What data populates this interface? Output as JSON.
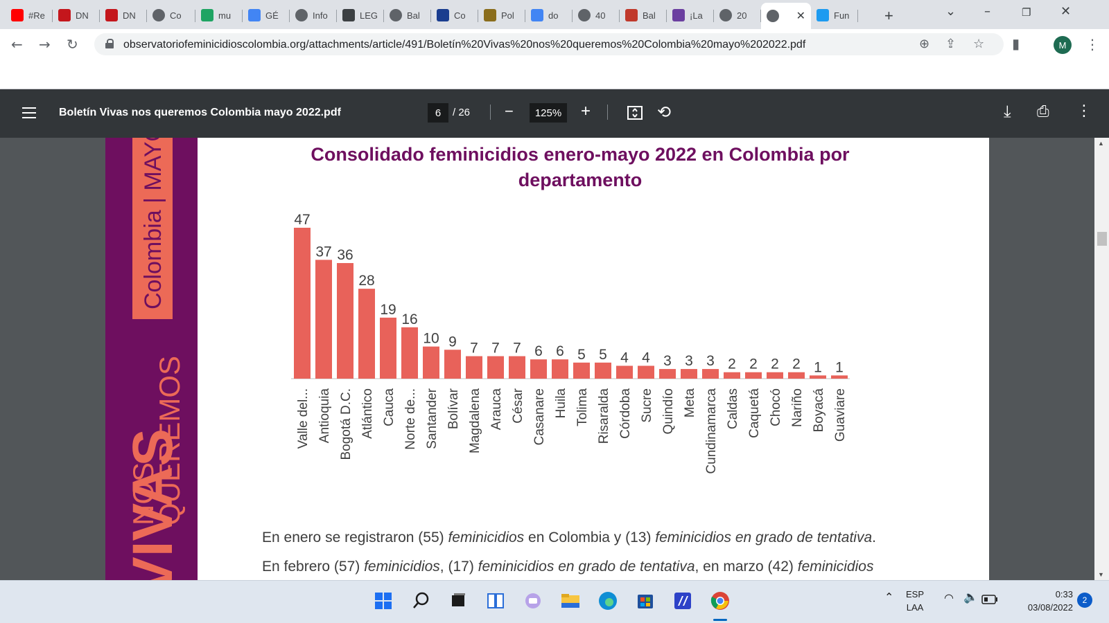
{
  "browser": {
    "tabs": [
      {
        "label": "#Re",
        "icon": "youtube-icon",
        "color": "#ff0000"
      },
      {
        "label": "DN",
        "icon": "dnp-icon",
        "color": "#c4161c"
      },
      {
        "label": "DN",
        "icon": "dnp-icon",
        "color": "#c4161c"
      },
      {
        "label": "Co",
        "icon": "globe-icon",
        "color": "#5f6368"
      },
      {
        "label": "mu",
        "icon": "drive-icon",
        "color": "#1fa463"
      },
      {
        "label": "GÉ",
        "icon": "docs-icon",
        "color": "#4285f4"
      },
      {
        "label": "Info",
        "icon": "globe-icon",
        "color": "#5f6368"
      },
      {
        "label": "LEG",
        "icon": "site-icon",
        "color": "#3c4043"
      },
      {
        "label": "Bal",
        "icon": "globe-icon",
        "color": "#5f6368"
      },
      {
        "label": "Co",
        "icon": "site-icon",
        "color": "#1a3d8f"
      },
      {
        "label": "Pol",
        "icon": "shield-icon",
        "color": "#8a6d1c"
      },
      {
        "label": "do",
        "icon": "google-icon",
        "color": "#4285f4"
      },
      {
        "label": "40",
        "icon": "globe-icon",
        "color": "#5f6368"
      },
      {
        "label": "Bal",
        "icon": "site-icon",
        "color": "#c0392b"
      },
      {
        "label": "¡La",
        "icon": "site-icon",
        "color": "#6b3fa0"
      },
      {
        "label": "20",
        "icon": "globe-icon",
        "color": "#5f6368"
      },
      {
        "label": "",
        "icon": "globe-icon",
        "color": "#5f6368",
        "active": true
      },
      {
        "label": "Fun",
        "icon": "twitter-icon",
        "color": "#1d9bf0"
      }
    ],
    "url": "observatoriofeminicidioscolombia.org/attachments/article/491/Boletín%20Vivas%20nos%20queremos%20Colombia%20mayo%202022.pdf",
    "avatar_letter": "M"
  },
  "pdf_viewer": {
    "title": "Boletín Vivas nos queremos Colombia mayo 2022.pdf",
    "current_page": "6",
    "total_pages": "/ 26",
    "zoom": "125%"
  },
  "document": {
    "band": {
      "top_text": "Colombia | MAYO",
      "nos": "NOS",
      "queremos": "QUEREMOS",
      "vivas": "VIVAS"
    },
    "paragraph_1": {
      "parts": [
        "En enero se registraron (55) ",
        "feminicidios",
        " en Colombia y (13) ",
        "feminicidios en grado de tentativa",
        "."
      ]
    },
    "paragraph_2": {
      "parts": [
        "En febrero (57) ",
        "feminicidios",
        ", (17) ",
        "feminicidios en grado de tentativa",
        ", en marzo (42) ",
        "feminicidios"
      ]
    }
  },
  "chart_data": {
    "type": "bar",
    "title": "Consolidado feminicidios enero-mayo 2022 en Colombia por departamento",
    "categories": [
      "Valle del...",
      "Antioquia",
      "Bogotá D.C.",
      "Atlántico",
      "Cauca",
      "Norte de...",
      "Santander",
      "Bolívar",
      "Magdalena",
      "Arauca",
      "César",
      "Casanare",
      "Huila",
      "Tolima",
      "Risaralda",
      "Córdoba",
      "Sucre",
      "Quindío",
      "Meta",
      "Cundinamarca",
      "Caldas",
      "Caquetá",
      "Chocó",
      "Nariño",
      "Boyacá",
      "Guaviare"
    ],
    "values": [
      47,
      37,
      36,
      28,
      19,
      16,
      10,
      9,
      7,
      7,
      7,
      6,
      6,
      5,
      5,
      4,
      4,
      3,
      3,
      3,
      2,
      2,
      2,
      2,
      1,
      1
    ],
    "bar_color": "#e8625a",
    "data_labels": true,
    "xlabel": "",
    "ylabel": "",
    "ylim": [
      0,
      47
    ]
  },
  "taskbar": {
    "apps": [
      "windows-start-icon",
      "search-icon",
      "task-view-icon",
      "widgets-icon",
      "chat-icon",
      "file-explorer-icon",
      "edge-icon",
      "store-icon",
      "app-icon",
      "chrome-icon"
    ],
    "language": "ESP",
    "layout": "LAA",
    "time": "0:33",
    "date": "03/08/2022",
    "notifications": "2"
  }
}
